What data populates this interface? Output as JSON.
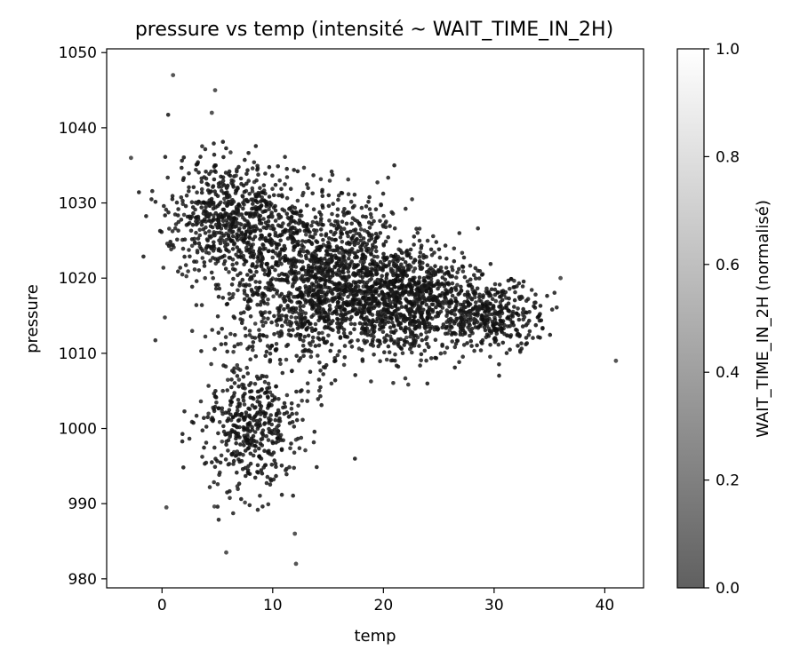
{
  "chart_data": {
    "type": "scatter",
    "title": "pressure vs temp (intensité ~ WAIT_TIME_IN_2H)",
    "xlabel": "temp",
    "ylabel": "pressure",
    "xlim": [
      -5,
      43.5
    ],
    "ylim": [
      978.8,
      1050.5
    ],
    "xticks": [
      0,
      10,
      20,
      30,
      40
    ],
    "yticks": [
      980,
      990,
      1000,
      1010,
      1020,
      1030,
      1040,
      1050
    ],
    "grid": false,
    "colorbar": {
      "label": "WAIT_TIME_IN_2H (normalisé)",
      "range": [
        0.0,
        1.0
      ],
      "ticks": [
        "0.0",
        "0.2",
        "0.4",
        "0.6",
        "0.8",
        "1.0"
      ],
      "colormap": "grey",
      "low_color": "#606060",
      "high_color": "#ffffff"
    },
    "point_color_typical": "#202020",
    "notable_points": [
      {
        "x": 1.0,
        "y": 1047
      },
      {
        "x": -2.8,
        "y": 1036
      },
      {
        "x": 4.5,
        "y": 1042
      },
      {
        "x": 4.8,
        "y": 1045
      },
      {
        "x": 12.1,
        "y": 982
      },
      {
        "x": 5.8,
        "y": 983.5
      },
      {
        "x": 41.0,
        "y": 1009
      },
      {
        "x": 36.0,
        "y": 1020
      },
      {
        "x": 12.0,
        "y": 986
      },
      {
        "x": 0.4,
        "y": 989.5
      }
    ],
    "clusters": [
      {
        "center": [
          14,
          1020
        ],
        "spread": [
          8,
          10
        ],
        "count": 1500
      },
      {
        "center": [
          22,
          1017
        ],
        "spread": [
          6,
          6
        ],
        "count": 900
      },
      {
        "center": [
          6,
          1028
        ],
        "spread": [
          5,
          7
        ],
        "count": 600
      },
      {
        "center": [
          8,
          1000
        ],
        "spread": [
          4,
          8
        ],
        "count": 450
      },
      {
        "center": [
          30,
          1015
        ],
        "spread": [
          4,
          4
        ],
        "count": 350
      }
    ]
  }
}
